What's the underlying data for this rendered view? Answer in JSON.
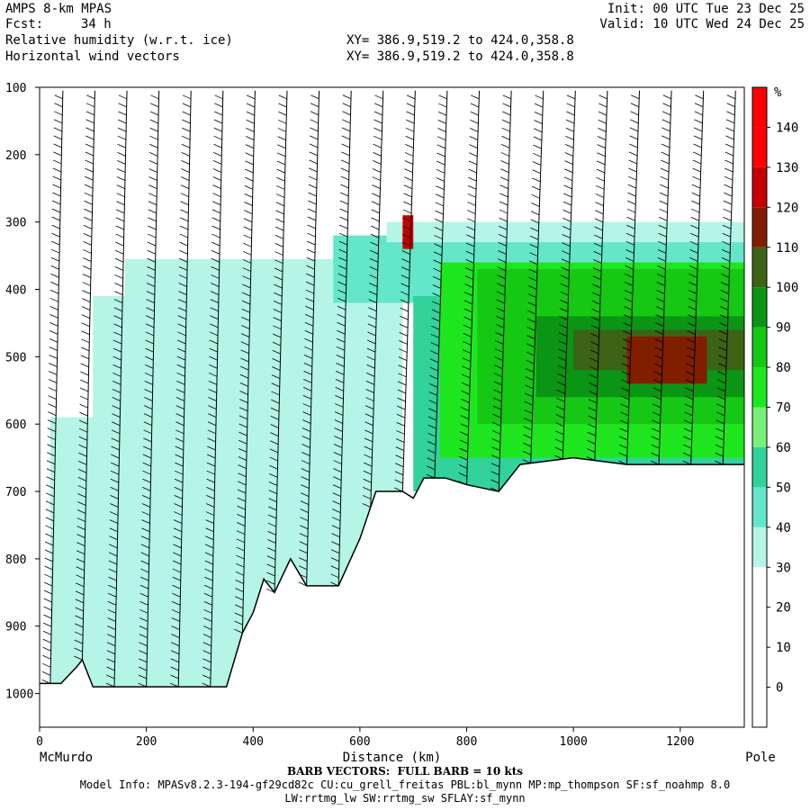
{
  "header": {
    "model": "AMPS 8-km MPAS",
    "fcst_label": "Fcst:",
    "fcst_value": "34 h",
    "field1": "Relative humidity (w.r.t. ice)",
    "field2": "Horizontal wind vectors",
    "xy1": "XY= 386.9,519.2 to 424.0,358.8",
    "xy2": "XY= 386.9,519.2 to 424.0,358.8",
    "init": "Init: 00 UTC Tue 23 Dec 25",
    "valid": "Valid: 10 UTC Wed 24 Dec 25"
  },
  "footer": {
    "barb_note": "BARB VECTORS:  FULL BARB = 10 kts",
    "model_info": "Model Info: MPASv8.2.3-194-gf29cd82c CU:cu_grell_freitas PBL:bl_mynn MP:mp_thompson SF:sf_noahmp 8.0",
    "model_info2": "LW:rrtmg_lw SW:rrtmg_sw SFLAY:sf_mynn"
  },
  "chart_data": {
    "type": "heatmap",
    "title": "Relative humidity (w.r.t. ice)",
    "xlabel": "Distance (km)",
    "ylabel": "",
    "x_start_label": "McMurdo",
    "x_end_label": "Pole",
    "xlim": [
      0,
      1320
    ],
    "ylim": [
      1050,
      100
    ],
    "xticks": [
      0,
      200,
      400,
      600,
      800,
      1000,
      1200
    ],
    "yticks": [
      100,
      200,
      300,
      400,
      500,
      600,
      700,
      800,
      900,
      1000
    ],
    "colorbar": {
      "unit": "%",
      "levels": [
        -10,
        0,
        10,
        20,
        30,
        40,
        50,
        60,
        70,
        80,
        90,
        100,
        110,
        120,
        130,
        140,
        150
      ],
      "labels": [
        0,
        10,
        20,
        30,
        40,
        50,
        60,
        70,
        80,
        90,
        100,
        110,
        120,
        130,
        140
      ],
      "colors": [
        "#ffffff",
        "#ffffff",
        "#ffffff",
        "#ffffff",
        "#b4f5e6",
        "#64e6c8",
        "#32d29b",
        "#78f078",
        "#1ee61e",
        "#14c814",
        "#0a9614",
        "#3c6414",
        "#821e00",
        "#c80000",
        "#ff0000",
        "#ff0000"
      ]
    },
    "terrain": [
      [
        0,
        985
      ],
      [
        40,
        985
      ],
      [
        70,
        960
      ],
      [
        80,
        950
      ],
      [
        100,
        990
      ],
      [
        350,
        990
      ],
      [
        380,
        910
      ],
      [
        400,
        880
      ],
      [
        420,
        830
      ],
      [
        440,
        850
      ],
      [
        470,
        800
      ],
      [
        500,
        840
      ],
      [
        560,
        840
      ],
      [
        600,
        770
      ],
      [
        630,
        700
      ],
      [
        680,
        700
      ],
      [
        700,
        710
      ],
      [
        720,
        680
      ],
      [
        760,
        680
      ],
      [
        800,
        690
      ],
      [
        860,
        700
      ],
      [
        900,
        660
      ],
      [
        1000,
        650
      ],
      [
        1100,
        660
      ],
      [
        1200,
        660
      ],
      [
        1320,
        660
      ]
    ],
    "regions": [
      {
        "x0": 20,
        "x1": 680,
        "p0": 590,
        "p1": 990,
        "value": 35
      },
      {
        "x0": 100,
        "x1": 680,
        "p0": 410,
        "p1": 620,
        "value": 35
      },
      {
        "x0": 160,
        "x1": 680,
        "p0": 355,
        "p1": 470,
        "value": 35
      },
      {
        "x0": 550,
        "x1": 1320,
        "p0": 320,
        "p1": 420,
        "value": 45
      },
      {
        "x0": 650,
        "x1": 1320,
        "p0": 300,
        "p1": 330,
        "value": 35
      },
      {
        "x0": 700,
        "x1": 1320,
        "p0": 410,
        "p1": 700,
        "value": 55
      },
      {
        "x0": 750,
        "x1": 1320,
        "p0": 360,
        "p1": 650,
        "value": 75
      },
      {
        "x0": 820,
        "x1": 1320,
        "p0": 370,
        "p1": 600,
        "value": 85
      },
      {
        "x0": 930,
        "x1": 1320,
        "p0": 440,
        "p1": 560,
        "value": 95
      },
      {
        "x0": 1000,
        "x1": 1320,
        "p0": 460,
        "p1": 520,
        "value": 105
      },
      {
        "x0": 1100,
        "x1": 1250,
        "p0": 470,
        "p1": 540,
        "value": 115
      },
      {
        "x0": 680,
        "x1": 700,
        "p0": 290,
        "p1": 340,
        "value": 125
      }
    ],
    "barb_columns_km": [
      20,
      80,
      140,
      200,
      260,
      320,
      380,
      440,
      500,
      560,
      620,
      680,
      740,
      800,
      860,
      920,
      980,
      1040,
      1100,
      1160,
      1220,
      1280
    ]
  }
}
